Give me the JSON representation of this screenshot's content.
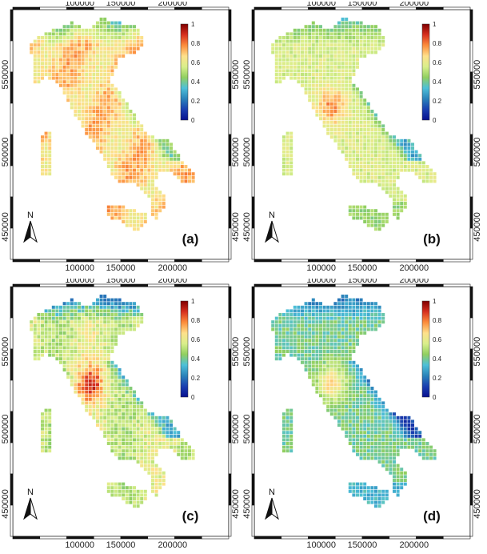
{
  "figure": {
    "panels": [
      {
        "id": "a",
        "label": "(a)",
        "variant": 0
      },
      {
        "id": "b",
        "label": "(b)",
        "variant": 1
      },
      {
        "id": "c",
        "label": "(c)",
        "variant": 2
      },
      {
        "id": "d",
        "label": "(d)",
        "variant": 3
      }
    ],
    "x_ticks": [
      "100000",
      "150000",
      "200000"
    ],
    "y_ticks": [
      "550000",
      "500000",
      "450000"
    ],
    "colorbar": {
      "ticks": [
        "1",
        "0.8",
        "0.6",
        "0.4",
        "0.2",
        "0"
      ],
      "colors": [
        "#7f0000",
        "#d7301f",
        "#fc8d3c",
        "#fee08b",
        "#d9ef8b",
        "#91cf60",
        "#4ec0d8",
        "#2b83ba",
        "#1a3fb0",
        "#08108f"
      ]
    },
    "north_arrow": {
      "label": "N"
    }
  }
}
